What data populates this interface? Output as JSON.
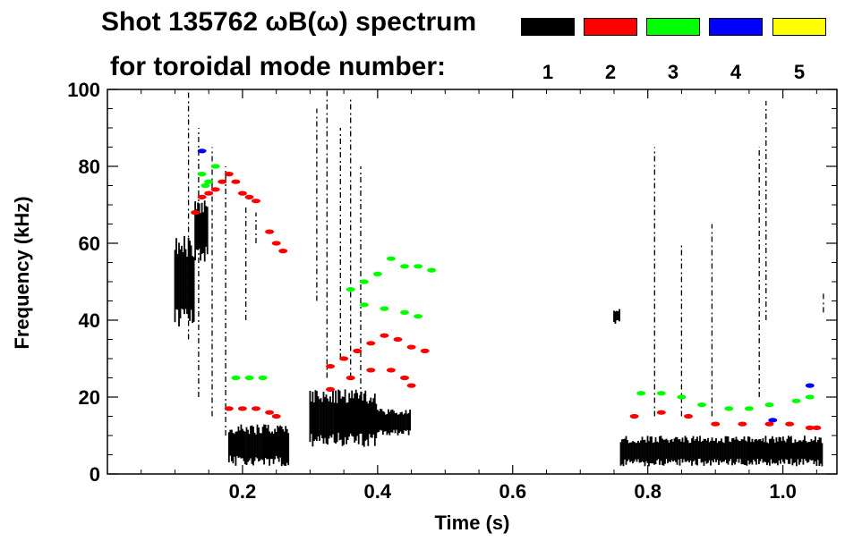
{
  "header": {
    "title_line1": "Shot 135762 ωB(ω) spectrum",
    "title_line2": "for toroidal mode number:"
  },
  "legend": [
    {
      "label": "1",
      "color": "#000000"
    },
    {
      "label": "2",
      "color": "#ff0000"
    },
    {
      "label": "3",
      "color": "#00ff00"
    },
    {
      "label": "4",
      "color": "#0000ff"
    },
    {
      "label": "5",
      "color": "#ffff00"
    }
  ],
  "chart_data": {
    "type": "heatmap",
    "xlabel": "Time (s)",
    "ylabel": "Frequency (kHz)",
    "xlim": [
      0.0,
      1.08
    ],
    "ylim": [
      0,
      100
    ],
    "xticks": [
      "0.2",
      "0.4",
      "0.6",
      "0.8",
      "1.0"
    ],
    "xtick_values": [
      0.2,
      0.4,
      0.6,
      0.8,
      1.0
    ],
    "yticks": [
      "0",
      "20",
      "40",
      "60",
      "80",
      "100"
    ],
    "ytick_values": [
      0,
      20,
      40,
      60,
      80,
      100
    ],
    "grid": false,
    "series": [
      {
        "name": "1",
        "color": "#000000",
        "regions": [
          {
            "t": [
              0.1,
              0.13
            ],
            "f": [
              38,
              62
            ]
          },
          {
            "t": [
              0.13,
              0.15
            ],
            "f": [
              55,
              72
            ]
          },
          {
            "t": [
              0.18,
              0.27
            ],
            "f": [
              2,
              13
            ]
          },
          {
            "t": [
              0.3,
              0.4
            ],
            "f": [
              7,
              22
            ]
          },
          {
            "t": [
              0.4,
              0.45
            ],
            "f": [
              10,
              17
            ]
          },
          {
            "t": [
              0.76,
              1.06
            ],
            "f": [
              2,
              10
            ]
          },
          {
            "t": [
              0.75,
              0.76
            ],
            "f": [
              39,
              43
            ]
          }
        ],
        "streaks": [
          {
            "t": 0.12,
            "f": [
              35,
              100
            ]
          },
          {
            "t": 0.135,
            "f": [
              20,
              90
            ]
          },
          {
            "t": 0.155,
            "f": [
              15,
              85
            ]
          },
          {
            "t": 0.175,
            "f": [
              10,
              80
            ]
          },
          {
            "t": 0.205,
            "f": [
              40,
              70
            ]
          },
          {
            "t": 0.22,
            "f": [
              60,
              68
            ]
          },
          {
            "t": 0.31,
            "f": [
              45,
              95
            ]
          },
          {
            "t": 0.325,
            "f": [
              25,
              100
            ]
          },
          {
            "t": 0.345,
            "f": [
              30,
              90
            ]
          },
          {
            "t": 0.36,
            "f": [
              25,
              98
            ]
          },
          {
            "t": 0.375,
            "f": [
              20,
              80
            ]
          },
          {
            "t": 0.81,
            "f": [
              15,
              85
            ]
          },
          {
            "t": 0.85,
            "f": [
              15,
              60
            ]
          },
          {
            "t": 0.895,
            "f": [
              15,
              65
            ]
          },
          {
            "t": 0.965,
            "f": [
              20,
              85
            ]
          },
          {
            "t": 0.975,
            "f": [
              40,
              97
            ]
          },
          {
            "t": 1.06,
            "f": [
              42,
              47
            ]
          }
        ]
      },
      {
        "name": "2",
        "color": "#ff0000",
        "points": [
          [
            0.13,
            68
          ],
          [
            0.14,
            72
          ],
          [
            0.15,
            73
          ],
          [
            0.16,
            74
          ],
          [
            0.17,
            76
          ],
          [
            0.18,
            78
          ],
          [
            0.19,
            76
          ],
          [
            0.2,
            73
          ],
          [
            0.21,
            72
          ],
          [
            0.22,
            71
          ],
          [
            0.24,
            63
          ],
          [
            0.25,
            60
          ],
          [
            0.26,
            58
          ],
          [
            0.18,
            17
          ],
          [
            0.2,
            17
          ],
          [
            0.22,
            17
          ],
          [
            0.24,
            16
          ],
          [
            0.25,
            15
          ],
          [
            0.33,
            28
          ],
          [
            0.35,
            30
          ],
          [
            0.37,
            32
          ],
          [
            0.39,
            34
          ],
          [
            0.41,
            36
          ],
          [
            0.43,
            35
          ],
          [
            0.45,
            33
          ],
          [
            0.47,
            32
          ],
          [
            0.33,
            22
          ],
          [
            0.36,
            25
          ],
          [
            0.39,
            27
          ],
          [
            0.42,
            27
          ],
          [
            0.44,
            25
          ],
          [
            0.45,
            23
          ],
          [
            0.78,
            15
          ],
          [
            0.82,
            16
          ],
          [
            0.86,
            15
          ],
          [
            0.9,
            13
          ],
          [
            0.94,
            13
          ],
          [
            0.98,
            13
          ],
          [
            1.01,
            13
          ],
          [
            1.04,
            12
          ],
          [
            1.05,
            12
          ]
        ]
      },
      {
        "name": "3",
        "color": "#00ff00",
        "points": [
          [
            0.14,
            78
          ],
          [
            0.145,
            75
          ],
          [
            0.15,
            76
          ],
          [
            0.16,
            80
          ],
          [
            0.19,
            25
          ],
          [
            0.21,
            25
          ],
          [
            0.23,
            25
          ],
          [
            0.36,
            48
          ],
          [
            0.38,
            50
          ],
          [
            0.4,
            52
          ],
          [
            0.42,
            56
          ],
          [
            0.44,
            54
          ],
          [
            0.46,
            54
          ],
          [
            0.48,
            53
          ],
          [
            0.38,
            44
          ],
          [
            0.41,
            43
          ],
          [
            0.44,
            42
          ],
          [
            0.46,
            41
          ],
          [
            0.79,
            21
          ],
          [
            0.82,
            21
          ],
          [
            0.85,
            20
          ],
          [
            0.88,
            18
          ],
          [
            0.92,
            17
          ],
          [
            0.95,
            17
          ],
          [
            0.98,
            18
          ],
          [
            1.02,
            19
          ],
          [
            1.04,
            20
          ]
        ]
      },
      {
        "name": "4",
        "color": "#0000ff",
        "points": [
          [
            0.14,
            84
          ],
          [
            0.985,
            14
          ],
          [
            1.04,
            23
          ]
        ]
      },
      {
        "name": "5",
        "color": "#ffff00",
        "points": []
      }
    ]
  }
}
